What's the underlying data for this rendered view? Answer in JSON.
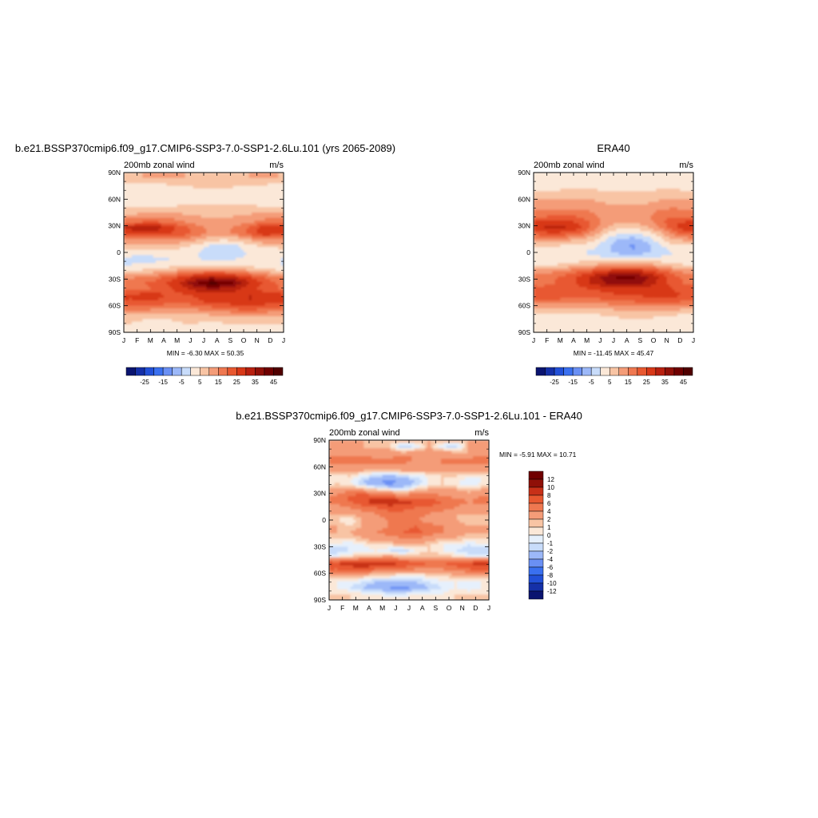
{
  "chart_data": [
    {
      "type": "heatmap",
      "title": "b.e21.BSSP370cmip6.f09_g17.CMIP6-SSP3-7.0-SSP1-2.6Lu.101 (yrs 2065-2089)",
      "subtitle": "200mb zonal wind",
      "units": "m/s",
      "x_ticks": [
        "J",
        "F",
        "M",
        "A",
        "M",
        "J",
        "J",
        "A",
        "S",
        "O",
        "N",
        "D",
        "J"
      ],
      "y_ticks": [
        "90N",
        "60N",
        "30N",
        "0",
        "30S",
        "60S",
        "90S"
      ],
      "stats": "MIN =  -6.30 MAX =  50.35",
      "colorbar_labels": [
        "-25",
        "-15",
        "-5",
        "5",
        "15",
        "25",
        "35",
        "45"
      ],
      "levels": [
        -30,
        -25,
        -20,
        -15,
        -10,
        -5,
        0,
        5,
        10,
        15,
        20,
        25,
        30,
        35,
        40,
        45
      ],
      "colors": [
        "#0a1470",
        "#1530a8",
        "#2250d8",
        "#3a70f0",
        "#6a90f4",
        "#9cb8f8",
        "#c8dcfa",
        "#fbe8d8",
        "#f8c4a4",
        "#f49c78",
        "#ef7850",
        "#e85830",
        "#d83818",
        "#b82010",
        "#901008",
        "#700000",
        "#500000"
      ],
      "z": [
        [
          9,
          10,
          10,
          10,
          10,
          9,
          9,
          9,
          9,
          10,
          10,
          10
        ],
        [
          10,
          10,
          10,
          10,
          10,
          10,
          10,
          10,
          10,
          10,
          10,
          10
        ],
        [
          4,
          4,
          4,
          5,
          5,
          6,
          6,
          6,
          6,
          5,
          5,
          4
        ],
        [
          2,
          2,
          2,
          3,
          3,
          4,
          4,
          4,
          3,
          3,
          2,
          2
        ],
        [
          0,
          0,
          0,
          0,
          1,
          1,
          2,
          2,
          1,
          1,
          0,
          0
        ],
        [
          3,
          3,
          3,
          3,
          4,
          4,
          4,
          4,
          4,
          4,
          3,
          3
        ],
        [
          6,
          7,
          7,
          7,
          7,
          7,
          8,
          8,
          8,
          7,
          7,
          6
        ],
        [
          11,
          12,
          12,
          12,
          11,
          10,
          9,
          9,
          10,
          11,
          12,
          12
        ],
        [
          18,
          20,
          20,
          18,
          15,
          12,
          11,
          11,
          12,
          14,
          17,
          18
        ],
        [
          32,
          34,
          33,
          28,
          22,
          17,
          14,
          14,
          16,
          22,
          28,
          31
        ],
        [
          25,
          27,
          26,
          24,
          22,
          18,
          14,
          14,
          16,
          22,
          28,
          27
        ],
        [
          14,
          15,
          15,
          14,
          13,
          10,
          6,
          5,
          6,
          10,
          14,
          14
        ],
        [
          7,
          8,
          8,
          7,
          6,
          3,
          -1,
          -3,
          -1,
          3,
          6,
          6
        ],
        [
          4,
          3,
          3,
          3,
          2,
          0,
          -3,
          -5,
          -2,
          1,
          3,
          3
        ],
        [
          -2,
          -3,
          -1,
          0,
          1,
          0,
          -1,
          -1,
          0,
          1,
          1,
          1
        ],
        [
          0,
          1,
          1,
          2,
          3,
          3,
          4,
          3,
          2,
          2,
          1,
          0
        ],
        [
          5,
          6,
          8,
          10,
          13,
          15,
          17,
          16,
          14,
          11,
          8,
          6
        ],
        [
          14,
          16,
          18,
          22,
          27,
          31,
          34,
          33,
          30,
          25,
          20,
          16
        ],
        [
          18,
          20,
          22,
          26,
          32,
          40,
          46,
          44,
          38,
          30,
          24,
          20
        ],
        [
          18,
          19,
          21,
          24,
          28,
          32,
          34,
          33,
          30,
          27,
          23,
          20
        ],
        [
          26,
          28,
          27,
          24,
          24,
          26,
          27,
          28,
          29,
          30,
          30,
          28
        ],
        [
          24,
          25,
          24,
          22,
          22,
          24,
          26,
          27,
          28,
          30,
          28,
          26
        ],
        [
          18,
          18,
          17,
          16,
          16,
          17,
          19,
          21,
          23,
          24,
          22,
          20
        ],
        [
          10,
          10,
          9,
          9,
          10,
          10,
          11,
          12,
          13,
          14,
          13,
          12
        ],
        [
          6,
          5,
          5,
          5,
          6,
          6,
          6,
          7,
          7,
          7,
          7,
          6
        ],
        [
          4,
          3,
          3,
          3,
          4,
          4,
          3,
          3,
          3,
          4,
          4,
          4
        ],
        [
          2,
          2,
          2,
          2,
          2,
          2,
          2,
          2,
          2,
          2,
          -1,
          2
        ]
      ]
    },
    {
      "type": "heatmap",
      "title": "ERA40",
      "subtitle": "200mb zonal wind",
      "units": "m/s",
      "x_ticks": [
        "J",
        "F",
        "M",
        "A",
        "M",
        "J",
        "J",
        "A",
        "S",
        "O",
        "N",
        "D",
        "J"
      ],
      "y_ticks": [
        "90N",
        "60N",
        "30N",
        "0",
        "30S",
        "60S",
        "90S"
      ],
      "stats": "MIN = -11.45 MAX =  45.47",
      "colorbar_labels": [
        "-25",
        "-15",
        "-5",
        "5",
        "15",
        "25",
        "35",
        "45"
      ],
      "levels": [
        -30,
        -25,
        -20,
        -15,
        -10,
        -5,
        0,
        5,
        10,
        15,
        20,
        25,
        30,
        35,
        40,
        45
      ],
      "colors": [
        "#0a1470",
        "#1530a8",
        "#2250d8",
        "#3a70f0",
        "#6a90f4",
        "#9cb8f8",
        "#c8dcfa",
        "#fbe8d8",
        "#f8c4a4",
        "#f49c78",
        "#ef7850",
        "#e85830",
        "#d83818",
        "#b82010",
        "#901008",
        "#700000",
        "#500000"
      ],
      "z": [
        [
          3,
          3,
          3,
          3,
          2,
          2,
          2,
          2,
          2,
          3,
          3,
          3
        ],
        [
          5,
          5,
          5,
          5,
          5,
          4,
          4,
          4,
          4,
          5,
          5,
          5
        ],
        [
          3,
          3,
          3,
          3,
          2,
          2,
          2,
          2,
          2,
          2,
          3,
          3
        ],
        [
          5,
          5,
          6,
          6,
          6,
          5,
          4,
          4,
          5,
          6,
          6,
          5
        ],
        [
          9,
          9,
          9,
          9,
          9,
          8,
          8,
          8,
          8,
          9,
          9,
          9
        ],
        [
          11,
          11,
          11,
          11,
          11,
          10,
          10,
          10,
          10,
          11,
          11,
          11
        ],
        [
          15,
          15,
          15,
          15,
          14,
          13,
          13,
          13,
          14,
          15,
          16,
          15
        ],
        [
          18,
          20,
          20,
          19,
          16,
          13,
          12,
          12,
          14,
          17,
          19,
          18
        ],
        [
          25,
          28,
          27,
          23,
          18,
          13,
          11,
          11,
          13,
          18,
          24,
          25
        ],
        [
          30,
          32,
          30,
          26,
          18,
          10,
          6,
          6,
          9,
          15,
          24,
          29
        ],
        [
          22,
          24,
          22,
          18,
          12,
          4,
          -1,
          -1,
          2,
          8,
          16,
          21
        ],
        [
          12,
          12,
          11,
          9,
          6,
          -1,
          -6,
          -8,
          -4,
          3,
          9,
          11
        ],
        [
          5,
          5,
          4,
          3,
          1,
          -4,
          -9,
          -11,
          -7,
          -1,
          3,
          4
        ],
        [
          0,
          0,
          0,
          0,
          -1,
          -4,
          -7,
          -9,
          -6,
          -2,
          0,
          0
        ],
        [
          1,
          1,
          1,
          2,
          2,
          1,
          0,
          0,
          1,
          1,
          1,
          1
        ],
        [
          4,
          5,
          6,
          8,
          10,
          12,
          13,
          13,
          12,
          9,
          6,
          5
        ],
        [
          12,
          14,
          16,
          19,
          23,
          27,
          30,
          30,
          27,
          22,
          16,
          13
        ],
        [
          17,
          19,
          22,
          27,
          32,
          38,
          42,
          41,
          36,
          29,
          22,
          18
        ],
        [
          18,
          20,
          22,
          26,
          31,
          35,
          38,
          37,
          34,
          28,
          23,
          19
        ],
        [
          22,
          23,
          23,
          24,
          25,
          26,
          27,
          27,
          27,
          26,
          25,
          23
        ],
        [
          24,
          24,
          23,
          23,
          23,
          24,
          25,
          25,
          26,
          27,
          26,
          25
        ],
        [
          18,
          18,
          17,
          17,
          17,
          18,
          19,
          20,
          21,
          22,
          21,
          19
        ],
        [
          10,
          10,
          10,
          10,
          10,
          11,
          12,
          13,
          14,
          14,
          13,
          11
        ],
        [
          4,
          4,
          4,
          4,
          5,
          6,
          7,
          8,
          8,
          7,
          6,
          5
        ],
        [
          2,
          2,
          2,
          2,
          3,
          3,
          4,
          5,
          4,
          3,
          2,
          2
        ],
        [
          2,
          2,
          2,
          2,
          2,
          2,
          3,
          3,
          2,
          2,
          2,
          2
        ],
        [
          2,
          2,
          2,
          2,
          2,
          2,
          2,
          2,
          2,
          2,
          2,
          2
        ]
      ]
    },
    {
      "type": "heatmap",
      "title": "b.e21.BSSP370cmip6.f09_g17.CMIP6-SSP3-7.0-SSP1-2.6Lu.101 - ERA40",
      "subtitle": "200mb zonal wind",
      "units": "m/s",
      "x_ticks": [
        "J",
        "F",
        "M",
        "A",
        "M",
        "J",
        "J",
        "A",
        "S",
        "O",
        "N",
        "D",
        "J"
      ],
      "y_ticks": [
        "90N",
        "60N",
        "30N",
        "0",
        "30S",
        "60S",
        "90S"
      ],
      "stats": "MIN =  -5.91 MAX =  10.71",
      "colorbar_labels": [
        "12",
        "10",
        "8",
        "6",
        "4",
        "2",
        "1",
        "0",
        "-1",
        "-2",
        "-4",
        "-6",
        "-8",
        "-10",
        "-12"
      ],
      "levels": [
        -12,
        -10,
        -8,
        -6,
        -4,
        -2,
        -1,
        0,
        1,
        2,
        4,
        6,
        8,
        10,
        12
      ],
      "colors": [
        "#0a1470",
        "#1530a8",
        "#2250d8",
        "#3a70f0",
        "#6a90f4",
        "#9cb8f8",
        "#c8dcfa",
        "#e6f0fc",
        "#fbe8d8",
        "#f8c4a4",
        "#f49c78",
        "#ef7850",
        "#e85830",
        "#c83018",
        "#901008",
        "#700000"
      ],
      "z": [
        [
          3,
          3,
          2,
          2,
          2,
          2,
          2,
          2,
          2,
          2,
          2,
          3
        ],
        [
          3,
          3,
          2,
          1,
          1,
          -2,
          -1,
          2,
          -1,
          -2,
          2,
          3
        ],
        [
          3,
          3,
          3,
          3,
          3,
          2,
          3,
          3,
          3,
          2,
          2,
          3
        ],
        [
          5,
          5,
          5,
          4,
          4,
          5,
          4,
          4,
          4,
          4,
          4,
          5
        ],
        [
          4,
          4,
          4,
          4,
          4,
          4,
          3,
          3,
          4,
          4,
          4,
          4
        ],
        [
          2,
          2,
          2,
          1,
          1,
          2,
          2,
          2,
          2,
          2,
          2,
          2
        ],
        [
          0,
          1,
          -1,
          -2,
          -3,
          -2,
          -1,
          0,
          1,
          1,
          0,
          0
        ],
        [
          1,
          0,
          -2,
          -4,
          -5,
          -4,
          -2,
          0,
          1,
          0,
          -1,
          0
        ],
        [
          2,
          3,
          2,
          1,
          0,
          -1,
          1,
          2,
          2,
          2,
          1,
          2
        ],
        [
          4,
          6,
          7,
          6,
          5,
          4,
          5,
          5,
          4,
          3,
          3,
          4
        ],
        [
          5,
          6,
          8,
          9,
          10,
          9,
          8,
          7,
          6,
          5,
          4,
          5
        ],
        [
          3,
          4,
          5,
          6,
          7,
          7,
          6,
          6,
          5,
          4,
          3,
          3
        ],
        [
          2,
          2,
          3,
          4,
          5,
          5,
          5,
          4,
          3,
          2,
          2,
          2
        ],
        [
          1,
          0,
          2,
          3,
          4,
          4,
          4,
          3,
          2,
          2,
          1,
          1
        ],
        [
          2,
          1,
          2,
          3,
          4,
          5,
          6,
          5,
          4,
          3,
          2,
          2
        ],
        [
          2,
          2,
          3,
          4,
          5,
          6,
          7,
          5,
          4,
          3,
          2,
          2
        ],
        [
          1,
          1,
          2,
          3,
          3,
          4,
          4,
          3,
          2,
          2,
          1,
          1
        ],
        [
          0,
          -1,
          0,
          1,
          1,
          2,
          2,
          1,
          0,
          0,
          -1,
          0
        ],
        [
          -2,
          -1,
          -1,
          0,
          -1,
          -2,
          0,
          1,
          0,
          -1,
          -2,
          -2
        ],
        [
          0,
          1,
          2,
          2,
          3,
          2,
          2,
          2,
          2,
          1,
          0,
          0
        ],
        [
          8,
          9,
          10,
          10,
          9,
          8,
          7,
          6,
          6,
          7,
          8,
          9
        ],
        [
          6,
          7,
          7,
          6,
          6,
          5,
          4,
          4,
          4,
          5,
          6,
          7
        ],
        [
          2,
          2,
          2,
          1,
          1,
          0,
          0,
          1,
          1,
          2,
          2,
          2
        ],
        [
          0,
          0,
          -1,
          -2,
          -2,
          -2,
          -2,
          -1,
          0,
          0,
          0,
          0
        ],
        [
          0,
          -1,
          -2,
          -3,
          -4,
          -5,
          -3,
          -2,
          -1,
          0,
          -1,
          0
        ],
        [
          1,
          1,
          0,
          0,
          -1,
          -1,
          0,
          0,
          0,
          1,
          1,
          1
        ],
        [
          1,
          1,
          1,
          1,
          1,
          1,
          1,
          1,
          1,
          1,
          1,
          1
        ]
      ]
    }
  ]
}
